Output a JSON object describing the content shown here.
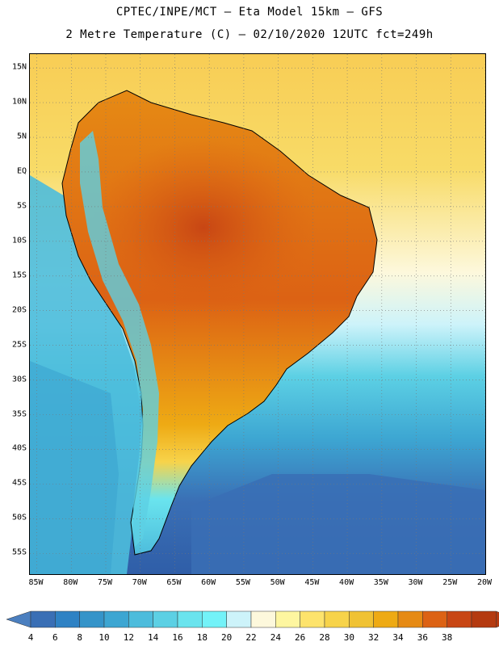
{
  "header": {
    "line1": "CPTEC/INPE/MCT –  Eta Model 15km – GFS",
    "line2": "2 Metre Temperature (C) – 02/10/2020 12UTC fct=249h"
  },
  "map": {
    "projection": "lat-lon",
    "extent": {
      "lon_min": -86,
      "lon_max": -20,
      "lat_min": -58,
      "lat_max": 17
    },
    "grid": true,
    "lat_labels": [
      {
        "lat": 15,
        "text": "15N"
      },
      {
        "lat": 10,
        "text": "10N"
      },
      {
        "lat": 5,
        "text": "5N"
      },
      {
        "lat": 0,
        "text": "EQ"
      },
      {
        "lat": -5,
        "text": "5S"
      },
      {
        "lat": -10,
        "text": "10S"
      },
      {
        "lat": -15,
        "text": "15S"
      },
      {
        "lat": -20,
        "text": "20S"
      },
      {
        "lat": -25,
        "text": "25S"
      },
      {
        "lat": -30,
        "text": "30S"
      },
      {
        "lat": -35,
        "text": "35S"
      },
      {
        "lat": -40,
        "text": "40S"
      },
      {
        "lat": -45,
        "text": "45S"
      },
      {
        "lat": -50,
        "text": "50S"
      },
      {
        "lat": -55,
        "text": "55S"
      }
    ],
    "lon_labels": [
      {
        "lon": -85,
        "text": "85W"
      },
      {
        "lon": -80,
        "text": "80W"
      },
      {
        "lon": -75,
        "text": "75W"
      },
      {
        "lon": -70,
        "text": "70W"
      },
      {
        "lon": -65,
        "text": "65W"
      },
      {
        "lon": -60,
        "text": "60W"
      },
      {
        "lon": -55,
        "text": "55W"
      },
      {
        "lon": -50,
        "text": "50W"
      },
      {
        "lon": -45,
        "text": "45W"
      },
      {
        "lon": -40,
        "text": "40W"
      },
      {
        "lon": -35,
        "text": "35W"
      },
      {
        "lon": -30,
        "text": "30W"
      },
      {
        "lon": -25,
        "text": "25W"
      },
      {
        "lon": -20,
        "text": "20W"
      }
    ]
  },
  "colorbar": {
    "labels": [
      "4",
      "6",
      "8",
      "10",
      "12",
      "14",
      "16",
      "18",
      "20",
      "22",
      "24",
      "26",
      "28",
      "30",
      "32",
      "34",
      "36",
      "38"
    ],
    "colors": [
      "#3a6fb5",
      "#2f82c4",
      "#3594c9",
      "#3da6d2",
      "#4dbcdc",
      "#5cd0e4",
      "#6ae4ee",
      "#73f2f8",
      "#cdf3fa",
      "#fdf8dc",
      "#fef6a0",
      "#fde36c",
      "#f7d34a",
      "#f0c234",
      "#eeaa14",
      "#e68a14",
      "#dc6214",
      "#c84614",
      "#b43a10",
      "#4b7fbf"
    ]
  },
  "temperature_field": {
    "ocean_south_atlantic": "4-8",
    "ocean_pacific": "10-16",
    "amazon_basin": "34-36",
    "central_brazil": "34-38",
    "caribbean_sea": "26-30",
    "southern_patagonia": "8-14"
  }
}
